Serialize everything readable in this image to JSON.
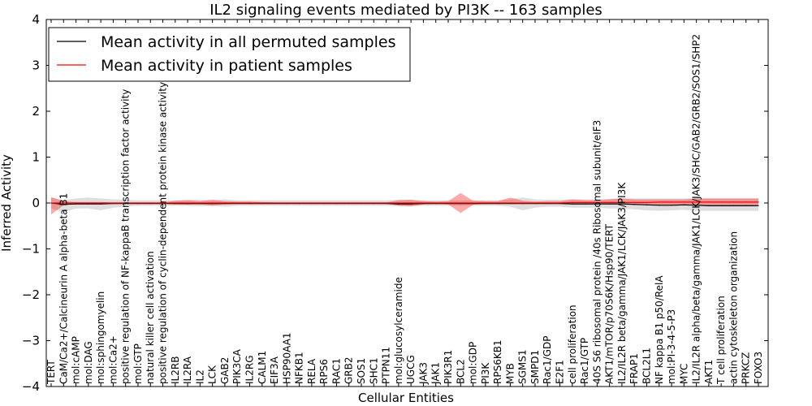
{
  "chart_data": {
    "type": "line",
    "title": "IL2 signaling events mediated by PI3K -- 163 samples",
    "xlabel": "Cellular Entities",
    "ylabel": "Inferred Activity",
    "ylim": [
      -4,
      4
    ],
    "yticks": [
      -4,
      -3,
      -2,
      -1,
      0,
      1,
      2,
      3,
      4
    ],
    "ytick_labels": [
      "−4",
      "−3",
      "−2",
      "−1",
      "0",
      "1",
      "2",
      "3",
      "4"
    ],
    "grid": false,
    "legend_position": "top-left",
    "categories": [
      "TERT",
      "CaM/Ca2+/Calcineurin A alpha-beta B1",
      "mol:cAMP",
      "mol:DAG",
      "mol:sphingomyelin",
      "mol:Ca2+",
      "positive regulation of NF-kappaB transcription factor activity",
      "mol:GTP",
      "natural killer cell activation",
      "positive regulation of cyclin-dependent protein kinase activity",
      "IL2RB",
      "IL2RA",
      "IL2",
      "LCK",
      "GAB2",
      "PIK3CA",
      "IL2RG",
      "CALM1",
      "EIF3A",
      "HSP90AA1",
      "NFKB1",
      "RELA",
      "RPS6",
      "RAC1",
      "GRB2",
      "SOS1",
      "SHC1",
      "PTPN11",
      "mol:glucosylceramide",
      "UGCG",
      "JAK3",
      "JAK1",
      "PIK3R1",
      "BCL2",
      "mol:GDP",
      "PI3K",
      "RPS6KB1",
      "MYB",
      "SGMS1",
      "SMPD1",
      "Rac1/GDP",
      "E2F1",
      "cell proliferation",
      "Rac1/GTP",
      "40S S6 ribosomal protein /40s Ribosomal subunit/eIF3",
      "AKT1/mTOR/p70S6K/Hsp90/TERT",
      "IL2/IL2R beta/gamma/JAK1/LCK/JAK3/PI3K",
      "FRAP1",
      "BCL2L1",
      "NF kappa B1 p50/RelA",
      "mol:PI-3-4-5-P3",
      "MYC",
      "IL2/IL2R alpha/beta/gamma/JAK1/LCK/JAK3/SHC/GAB2/GRB2/SOS1/SHP2",
      "AKT1",
      "T cell proliferation",
      "actin cytoskeleton organization",
      "PRKCZ",
      "FOXO3"
    ],
    "series": [
      {
        "name": "Mean activity in all permuted samples",
        "color": "#000000",
        "values": [
          0.0,
          -0.03,
          -0.02,
          -0.02,
          -0.02,
          -0.01,
          -0.01,
          -0.01,
          -0.01,
          -0.01,
          -0.01,
          -0.01,
          -0.01,
          -0.01,
          -0.01,
          -0.01,
          -0.01,
          -0.01,
          -0.01,
          -0.01,
          -0.01,
          -0.01,
          -0.01,
          -0.01,
          -0.01,
          -0.01,
          -0.01,
          -0.01,
          -0.02,
          -0.02,
          -0.01,
          -0.01,
          -0.01,
          -0.01,
          -0.01,
          -0.01,
          -0.01,
          -0.01,
          -0.01,
          -0.01,
          -0.01,
          -0.01,
          -0.02,
          -0.02,
          -0.02,
          -0.02,
          -0.02,
          -0.03,
          -0.04,
          -0.05,
          -0.05,
          -0.04,
          -0.05,
          -0.06,
          -0.06,
          -0.06,
          -0.06,
          -0.06
        ],
        "band_low": [
          -0.12,
          -0.2,
          -0.12,
          -0.12,
          -0.16,
          -0.1,
          -0.08,
          -0.06,
          -0.06,
          -0.06,
          -0.06,
          -0.06,
          -0.07,
          -0.06,
          -0.08,
          -0.06,
          -0.06,
          -0.06,
          -0.06,
          -0.06,
          -0.06,
          -0.06,
          -0.06,
          -0.06,
          -0.06,
          -0.06,
          -0.06,
          -0.06,
          -0.07,
          -0.07,
          -0.06,
          -0.06,
          -0.06,
          -0.06,
          -0.06,
          -0.06,
          -0.06,
          -0.08,
          -0.16,
          -0.1,
          -0.08,
          -0.08,
          -0.1,
          -0.1,
          -0.1,
          -0.12,
          -0.12,
          -0.14,
          -0.16,
          -0.17,
          -0.16,
          -0.15,
          -0.17,
          -0.17,
          -0.17,
          -0.17,
          -0.17,
          -0.17
        ],
        "band_high": [
          0.12,
          0.06,
          0.1,
          0.12,
          0.1,
          0.08,
          0.07,
          0.06,
          0.06,
          0.06,
          0.06,
          0.07,
          0.07,
          0.06,
          0.08,
          0.06,
          0.06,
          0.06,
          0.06,
          0.06,
          0.06,
          0.06,
          0.06,
          0.06,
          0.06,
          0.06,
          0.06,
          0.06,
          0.07,
          0.07,
          0.06,
          0.06,
          0.06,
          0.06,
          0.06,
          0.06,
          0.06,
          0.08,
          0.12,
          0.08,
          0.07,
          0.07,
          0.08,
          0.08,
          0.08,
          0.09,
          0.1,
          0.1,
          0.1,
          0.1,
          0.1,
          0.1,
          0.1,
          0.1,
          0.1,
          0.1,
          0.1,
          0.1
        ]
      },
      {
        "name": "Mean activity in patient samples",
        "color": "#ff0000",
        "values": [
          0.0,
          0.0,
          0.0,
          0.0,
          0.0,
          0.0,
          0.0,
          0.0,
          0.0,
          0.0,
          0.0,
          0.0,
          0.0,
          0.0,
          0.0,
          0.0,
          0.0,
          0.0,
          0.0,
          0.0,
          0.0,
          0.0,
          0.0,
          0.0,
          0.0,
          0.0,
          0.0,
          0.0,
          0.0,
          0.0,
          0.0,
          0.0,
          0.0,
          0.0,
          0.0,
          0.0,
          0.0,
          0.0,
          0.0,
          0.0,
          0.0,
          0.0,
          0.01,
          0.01,
          0.01,
          0.01,
          0.01,
          0.01,
          0.01,
          0.02,
          0.02,
          0.02,
          0.02,
          0.02,
          0.02,
          0.02,
          0.02,
          0.02
        ],
        "band_low": [
          -0.25,
          -0.05,
          -0.02,
          -0.02,
          -0.02,
          -0.01,
          -0.01,
          -0.01,
          -0.01,
          -0.01,
          -0.03,
          -0.04,
          -0.03,
          -0.06,
          -0.03,
          -0.02,
          -0.02,
          -0.02,
          -0.01,
          -0.01,
          -0.01,
          -0.01,
          -0.01,
          -0.01,
          -0.01,
          -0.01,
          -0.01,
          -0.01,
          -0.06,
          -0.07,
          -0.03,
          -0.02,
          -0.03,
          -0.22,
          -0.04,
          -0.02,
          -0.02,
          -0.02,
          -0.02,
          -0.01,
          -0.02,
          -0.02,
          -0.03,
          -0.03,
          -0.03,
          -0.03,
          -0.03,
          -0.05,
          -0.04,
          -0.05,
          -0.05,
          -0.05,
          -0.05,
          -0.05,
          -0.05,
          -0.05,
          -0.05,
          -0.05
        ],
        "band_high": [
          0.13,
          0.04,
          0.02,
          0.02,
          0.02,
          0.01,
          0.01,
          0.01,
          0.01,
          0.01,
          0.05,
          0.06,
          0.04,
          0.07,
          0.04,
          0.03,
          0.03,
          0.02,
          0.01,
          0.01,
          0.01,
          0.01,
          0.01,
          0.01,
          0.01,
          0.01,
          0.01,
          0.01,
          0.06,
          0.07,
          0.04,
          0.03,
          0.04,
          0.22,
          0.05,
          0.04,
          0.04,
          0.12,
          0.05,
          0.03,
          0.04,
          0.04,
          0.08,
          0.06,
          0.06,
          0.08,
          0.1,
          0.08,
          0.08,
          0.08,
          0.08,
          0.08,
          0.1,
          0.1,
          0.1,
          0.1,
          0.1,
          0.1
        ]
      }
    ]
  }
}
